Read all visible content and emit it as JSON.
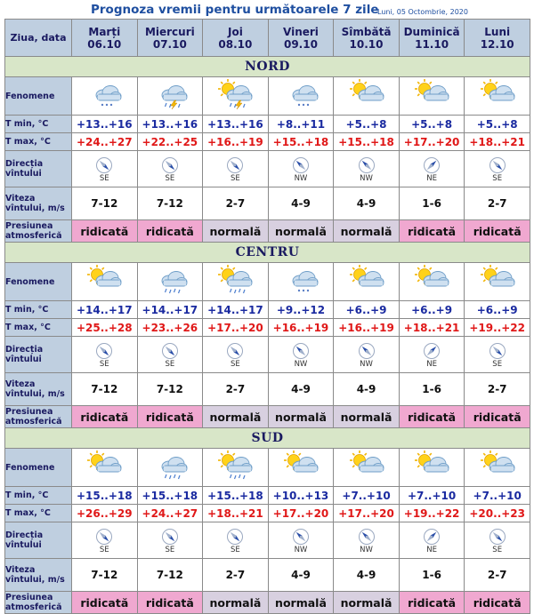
{
  "title": "Prognoza vremii pentru următoarele 7 zile",
  "date": "Luni, 05 Octombrie, 2020",
  "header_label": "Ziua, data",
  "days": [
    {
      "name": "Marți",
      "date": "06.10"
    },
    {
      "name": "Miercuri",
      "date": "07.10"
    },
    {
      "name": "Joi",
      "date": "08.10"
    },
    {
      "name": "Vineri",
      "date": "09.10"
    },
    {
      "name": "Sîmbătă",
      "date": "10.10"
    },
    {
      "name": "Duminică",
      "date": "11.10"
    },
    {
      "name": "Luni",
      "date": "12.10"
    }
  ],
  "row_labels": {
    "fenomene": "Fenomene",
    "tmin": "T min, °C",
    "tmax": "T max, °C",
    "directia": "Direcția vîntului",
    "viteza": "Viteza vîntului, m/s",
    "presiune": "Presiunea atmosferică"
  },
  "regions": [
    {
      "name": "NORD",
      "icons": [
        "cloud-snow-icon",
        "cloud-thunder-rain-icon",
        "sun-cloud-thunder-rain-icon",
        "cloud-snow-icon",
        "sun-cloud-icon",
        "sun-cloud-icon",
        "sun-cloud-icon"
      ],
      "tmin": [
        "+13..+16",
        "+13..+16",
        "+13..+16",
        "+8..+11",
        "+5..+8",
        "+5..+8",
        "+5..+8"
      ],
      "tmax": [
        "+24..+27",
        "+22..+25",
        "+16..+19",
        "+15..+18",
        "+15..+18",
        "+17..+20",
        "+18..+21"
      ],
      "dir": [
        "SE",
        "SE",
        "SE",
        "NW",
        "NW",
        "NE",
        "SE"
      ],
      "viteza": [
        "7-12",
        "7-12",
        "2-7",
        "4-9",
        "4-9",
        "1-6",
        "2-7"
      ],
      "presiune": [
        "ridicată",
        "ridicată",
        "normală",
        "normală",
        "normală",
        "ridicată",
        "ridicată"
      ]
    },
    {
      "name": "CENTRU",
      "icons": [
        "sun-cloud-icon",
        "cloud-rain-icon",
        "sun-cloud-rain-icon",
        "cloud-snow-icon",
        "sun-cloud-icon",
        "sun-cloud-icon",
        "sun-cloud-icon"
      ],
      "tmin": [
        "+14..+17",
        "+14..+17",
        "+14..+17",
        "+9..+12",
        "+6..+9",
        "+6..+9",
        "+6..+9"
      ],
      "tmax": [
        "+25..+28",
        "+23..+26",
        "+17..+20",
        "+16..+19",
        "+16..+19",
        "+18..+21",
        "+19..+22"
      ],
      "dir": [
        "SE",
        "SE",
        "SE",
        "NW",
        "NW",
        "NE",
        "SE"
      ],
      "viteza": [
        "7-12",
        "7-12",
        "2-7",
        "4-9",
        "4-9",
        "1-6",
        "2-7"
      ],
      "presiune": [
        "ridicată",
        "ridicată",
        "normală",
        "normală",
        "normală",
        "ridicată",
        "ridicată"
      ]
    },
    {
      "name": "SUD",
      "icons": [
        "sun-cloud-icon",
        "cloud-rain-icon",
        "sun-cloud-rain-icon",
        "sun-cloud-icon",
        "sun-cloud-icon",
        "sun-cloud-icon",
        "sun-cloud-icon"
      ],
      "tmin": [
        "+15..+18",
        "+15..+18",
        "+15..+18",
        "+10..+13",
        "+7..+10",
        "+7..+10",
        "+7..+10"
      ],
      "tmax": [
        "+26..+29",
        "+24..+27",
        "+18..+21",
        "+17..+20",
        "+17..+20",
        "+19..+22",
        "+20..+23"
      ],
      "dir": [
        "SE",
        "SE",
        "SE",
        "NW",
        "NW",
        "NE",
        "SE"
      ],
      "viteza": [
        "7-12",
        "7-12",
        "2-7",
        "4-9",
        "4-9",
        "1-6",
        "2-7"
      ],
      "presiune": [
        "ridicată",
        "ridicată",
        "normală",
        "normală",
        "normală",
        "ridicată",
        "ridicată"
      ]
    }
  ]
}
